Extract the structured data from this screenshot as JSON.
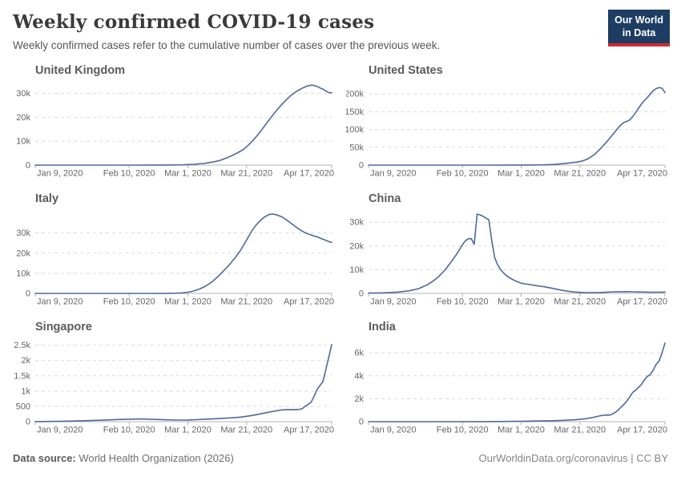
{
  "header": {
    "title": "Weekly confirmed COVID-19 cases",
    "subtitle": "Weekly confirmed cases refer to the cumulative number of cases over the previous week.",
    "logo": {
      "line1": "Our World",
      "line2": "in Data"
    }
  },
  "footer": {
    "source_label": "Data source:",
    "source_text": " World Health Organization (2026)",
    "attribution": "OurWorldinData.org/coronavirus | CC BY"
  },
  "colors": {
    "line": "#4c6a9c",
    "grid": "#d9d9d9",
    "axis": "#b3b3b3",
    "tick_label": "#666666",
    "logo_bg": "#1d3d63",
    "logo_accent": "#cf2b33"
  },
  "chart_data": [
    {
      "name": "United Kingdom",
      "type": "line",
      "x_unit": "days since Jan 9, 2020",
      "x_domain": [
        0,
        101
      ],
      "x_tick_days": [
        0,
        32,
        52,
        72,
        101
      ],
      "x_tick_labels": [
        "Jan 9, 2020",
        "Feb 10, 2020",
        "Mar 1, 2020",
        "Mar 21, 2020",
        "Apr 17, 2020"
      ],
      "y_ticks": [
        0,
        10000,
        20000,
        30000
      ],
      "y_tick_labels": [
        "0",
        "10k",
        "20k",
        "30k"
      ],
      "ylim": [
        0,
        34500
      ],
      "x": [
        0,
        10,
        20,
        30,
        40,
        46,
        50,
        54,
        58,
        61,
        63,
        65,
        67,
        69,
        71,
        73,
        75,
        77,
        79,
        81,
        83,
        85,
        87,
        89,
        91,
        93,
        94,
        95,
        96,
        97,
        98,
        99,
        100,
        101
      ],
      "y": [
        0,
        0,
        5,
        15,
        40,
        80,
        150,
        350,
        800,
        1400,
        2000,
        2900,
        4000,
        5200,
        6600,
        8800,
        11500,
        14500,
        17800,
        21000,
        24000,
        26700,
        29000,
        30800,
        32200,
        33200,
        33400,
        33300,
        32900,
        32300,
        31800,
        31000,
        30300,
        30200
      ]
    },
    {
      "name": "United States",
      "type": "line",
      "x_unit": "days since Jan 9, 2020",
      "x_domain": [
        0,
        101
      ],
      "x_tick_days": [
        0,
        32,
        52,
        72,
        101
      ],
      "x_tick_labels": [
        "Jan 9, 2020",
        "Feb 10, 2020",
        "Mar 1, 2020",
        "Mar 21, 2020",
        "Apr 17, 2020"
      ],
      "y_ticks": [
        0,
        50000,
        100000,
        150000,
        200000
      ],
      "y_tick_labels": [
        "0",
        "50k",
        "100k",
        "150k",
        "200k"
      ],
      "ylim": [
        0,
        232000
      ],
      "x": [
        0,
        20,
        40,
        50,
        56,
        60,
        63,
        66,
        69,
        71,
        73,
        75,
        77,
        79,
        81,
        83,
        85,
        86,
        87,
        88,
        89,
        90,
        91,
        92,
        93,
        94,
        95,
        96,
        97,
        98,
        99,
        100,
        101
      ],
      "y": [
        0,
        10,
        60,
        150,
        400,
        800,
        1800,
        4000,
        6500,
        8500,
        12000,
        19000,
        30000,
        46000,
        64000,
        84000,
        104000,
        113000,
        120000,
        123000,
        127000,
        136000,
        148000,
        160000,
        172000,
        182000,
        190000,
        200000,
        209000,
        215000,
        218000,
        216000,
        204000
      ]
    },
    {
      "name": "Italy",
      "type": "line",
      "x_unit": "days since Jan 9, 2020",
      "x_domain": [
        0,
        101
      ],
      "x_tick_days": [
        0,
        32,
        52,
        72,
        101
      ],
      "x_tick_labels": [
        "Jan 9, 2020",
        "Feb 10, 2020",
        "Mar 1, 2020",
        "Mar 21, 2020",
        "Apr 17, 2020"
      ],
      "y_ticks": [
        0,
        10000,
        20000,
        30000
      ],
      "y_tick_labels": [
        "0",
        "10k",
        "20k",
        "30k"
      ],
      "ylim": [
        0,
        41000
      ],
      "x": [
        0,
        30,
        40,
        45,
        48,
        50,
        52,
        54,
        56,
        58,
        60,
        62,
        64,
        66,
        68,
        70,
        71,
        72,
        73,
        74,
        75,
        76,
        77,
        78,
        79,
        80,
        81,
        82,
        83,
        84,
        85,
        86,
        87,
        88,
        89,
        90,
        91,
        92,
        93,
        94,
        95,
        96,
        97,
        98,
        99,
        100,
        101
      ],
      "y": [
        0,
        0,
        10,
        50,
        120,
        250,
        600,
        1200,
        2200,
        3600,
        5500,
        8000,
        11000,
        14000,
        17500,
        21500,
        24000,
        26500,
        29000,
        31500,
        33500,
        35200,
        36600,
        37800,
        38700,
        39300,
        39400,
        39100,
        38600,
        38000,
        37100,
        36100,
        35000,
        33900,
        32800,
        31800,
        30900,
        30100,
        29500,
        29000,
        28500,
        28100,
        27500,
        26900,
        26400,
        25800,
        25300
      ]
    },
    {
      "name": "China",
      "type": "line",
      "x_unit": "days since Jan 9, 2020",
      "x_domain": [
        0,
        101
      ],
      "x_tick_days": [
        0,
        32,
        52,
        72,
        101
      ],
      "x_tick_labels": [
        "Jan 9, 2020",
        "Feb 10, 2020",
        "Mar 1, 2020",
        "Mar 21, 2020",
        "Apr 17, 2020"
      ],
      "y_ticks": [
        0,
        10000,
        20000,
        30000
      ],
      "y_tick_labels": [
        "0",
        "10k",
        "20k",
        "30k"
      ],
      "ylim": [
        0,
        34800
      ],
      "x": [
        0,
        5,
        10,
        14,
        17,
        20,
        22,
        24,
        26,
        28,
        30,
        31,
        32,
        33,
        34,
        35,
        36,
        37,
        38,
        39,
        40,
        41,
        42,
        43,
        44,
        45,
        46,
        47,
        48,
        50,
        52,
        54,
        56,
        58,
        60,
        62,
        64,
        66,
        68,
        70,
        72,
        74,
        76,
        78,
        80,
        82,
        84,
        86,
        88,
        90,
        92,
        94,
        96,
        98,
        100,
        101
      ],
      "y": [
        150,
        250,
        550,
        1100,
        2000,
        3600,
        5200,
        7200,
        9800,
        13000,
        16500,
        18500,
        20500,
        22200,
        23000,
        23100,
        20700,
        33400,
        33100,
        32500,
        31800,
        31000,
        22000,
        15000,
        12000,
        10000,
        8600,
        7500,
        6600,
        5300,
        4300,
        3900,
        3500,
        3100,
        2800,
        2300,
        1800,
        1300,
        900,
        600,
        450,
        350,
        300,
        350,
        450,
        560,
        650,
        720,
        730,
        680,
        620,
        560,
        520,
        500,
        540,
        580
      ]
    },
    {
      "name": "Singapore",
      "type": "line",
      "x_unit": "days since Jan 9, 2020",
      "x_domain": [
        0,
        101
      ],
      "x_tick_days": [
        0,
        32,
        52,
        72,
        101
      ],
      "x_tick_labels": [
        "Jan 9, 2020",
        "Feb 10, 2020",
        "Mar 1, 2020",
        "Mar 21, 2020",
        "Apr 17, 2020"
      ],
      "y_ticks": [
        0,
        500,
        1000,
        1500,
        2000,
        2500
      ],
      "y_tick_labels": [
        "0",
        "500",
        "1k",
        "1.5k",
        "2k",
        "2.5k"
      ],
      "ylim": [
        0,
        2700
      ],
      "x": [
        0,
        6,
        12,
        18,
        24,
        28,
        32,
        36,
        40,
        44,
        48,
        52,
        55,
        58,
        61,
        64,
        67,
        70,
        72,
        74,
        76,
        78,
        80,
        82,
        84,
        86,
        88,
        90,
        91,
        92,
        93,
        94,
        95,
        96,
        97,
        98,
        99,
        100,
        101
      ],
      "y": [
        3,
        8,
        18,
        35,
        55,
        70,
        80,
        88,
        75,
        62,
        52,
        55,
        65,
        80,
        95,
        110,
        125,
        150,
        175,
        205,
        240,
        280,
        320,
        355,
        385,
        395,
        390,
        400,
        430,
        505,
        565,
        640,
        830,
        1050,
        1180,
        1310,
        1700,
        2100,
        2520
      ]
    },
    {
      "name": "India",
      "type": "line",
      "x_unit": "days since Jan 9, 2020",
      "x_domain": [
        0,
        101
      ],
      "x_tick_days": [
        0,
        32,
        52,
        72,
        101
      ],
      "x_tick_labels": [
        "Jan 9, 2020",
        "Feb 10, 2020",
        "Mar 1, 2020",
        "Mar 21, 2020",
        "Apr 17, 2020"
      ],
      "y_ticks": [
        0,
        2000,
        4000,
        6000
      ],
      "y_tick_labels": [
        "0",
        "2k",
        "4k",
        "6k"
      ],
      "ylim": [
        0,
        7200
      ],
      "x": [
        0,
        20,
        40,
        50,
        54,
        58,
        62,
        65,
        68,
        70,
        72,
        74,
        76,
        78,
        79,
        80,
        81,
        82,
        83,
        84,
        85,
        86,
        87,
        88,
        89,
        90,
        91,
        92,
        93,
        94,
        95,
        96,
        97,
        98,
        99,
        100,
        101
      ],
      "y": [
        0,
        0,
        10,
        30,
        45,
        60,
        80,
        100,
        130,
        160,
        200,
        260,
        340,
        460,
        520,
        560,
        580,
        570,
        650,
        800,
        1000,
        1250,
        1500,
        1800,
        2150,
        2550,
        2750,
        3000,
        3250,
        3650,
        3950,
        4100,
        4500,
        5000,
        5300,
        6000,
        6850
      ]
    }
  ]
}
